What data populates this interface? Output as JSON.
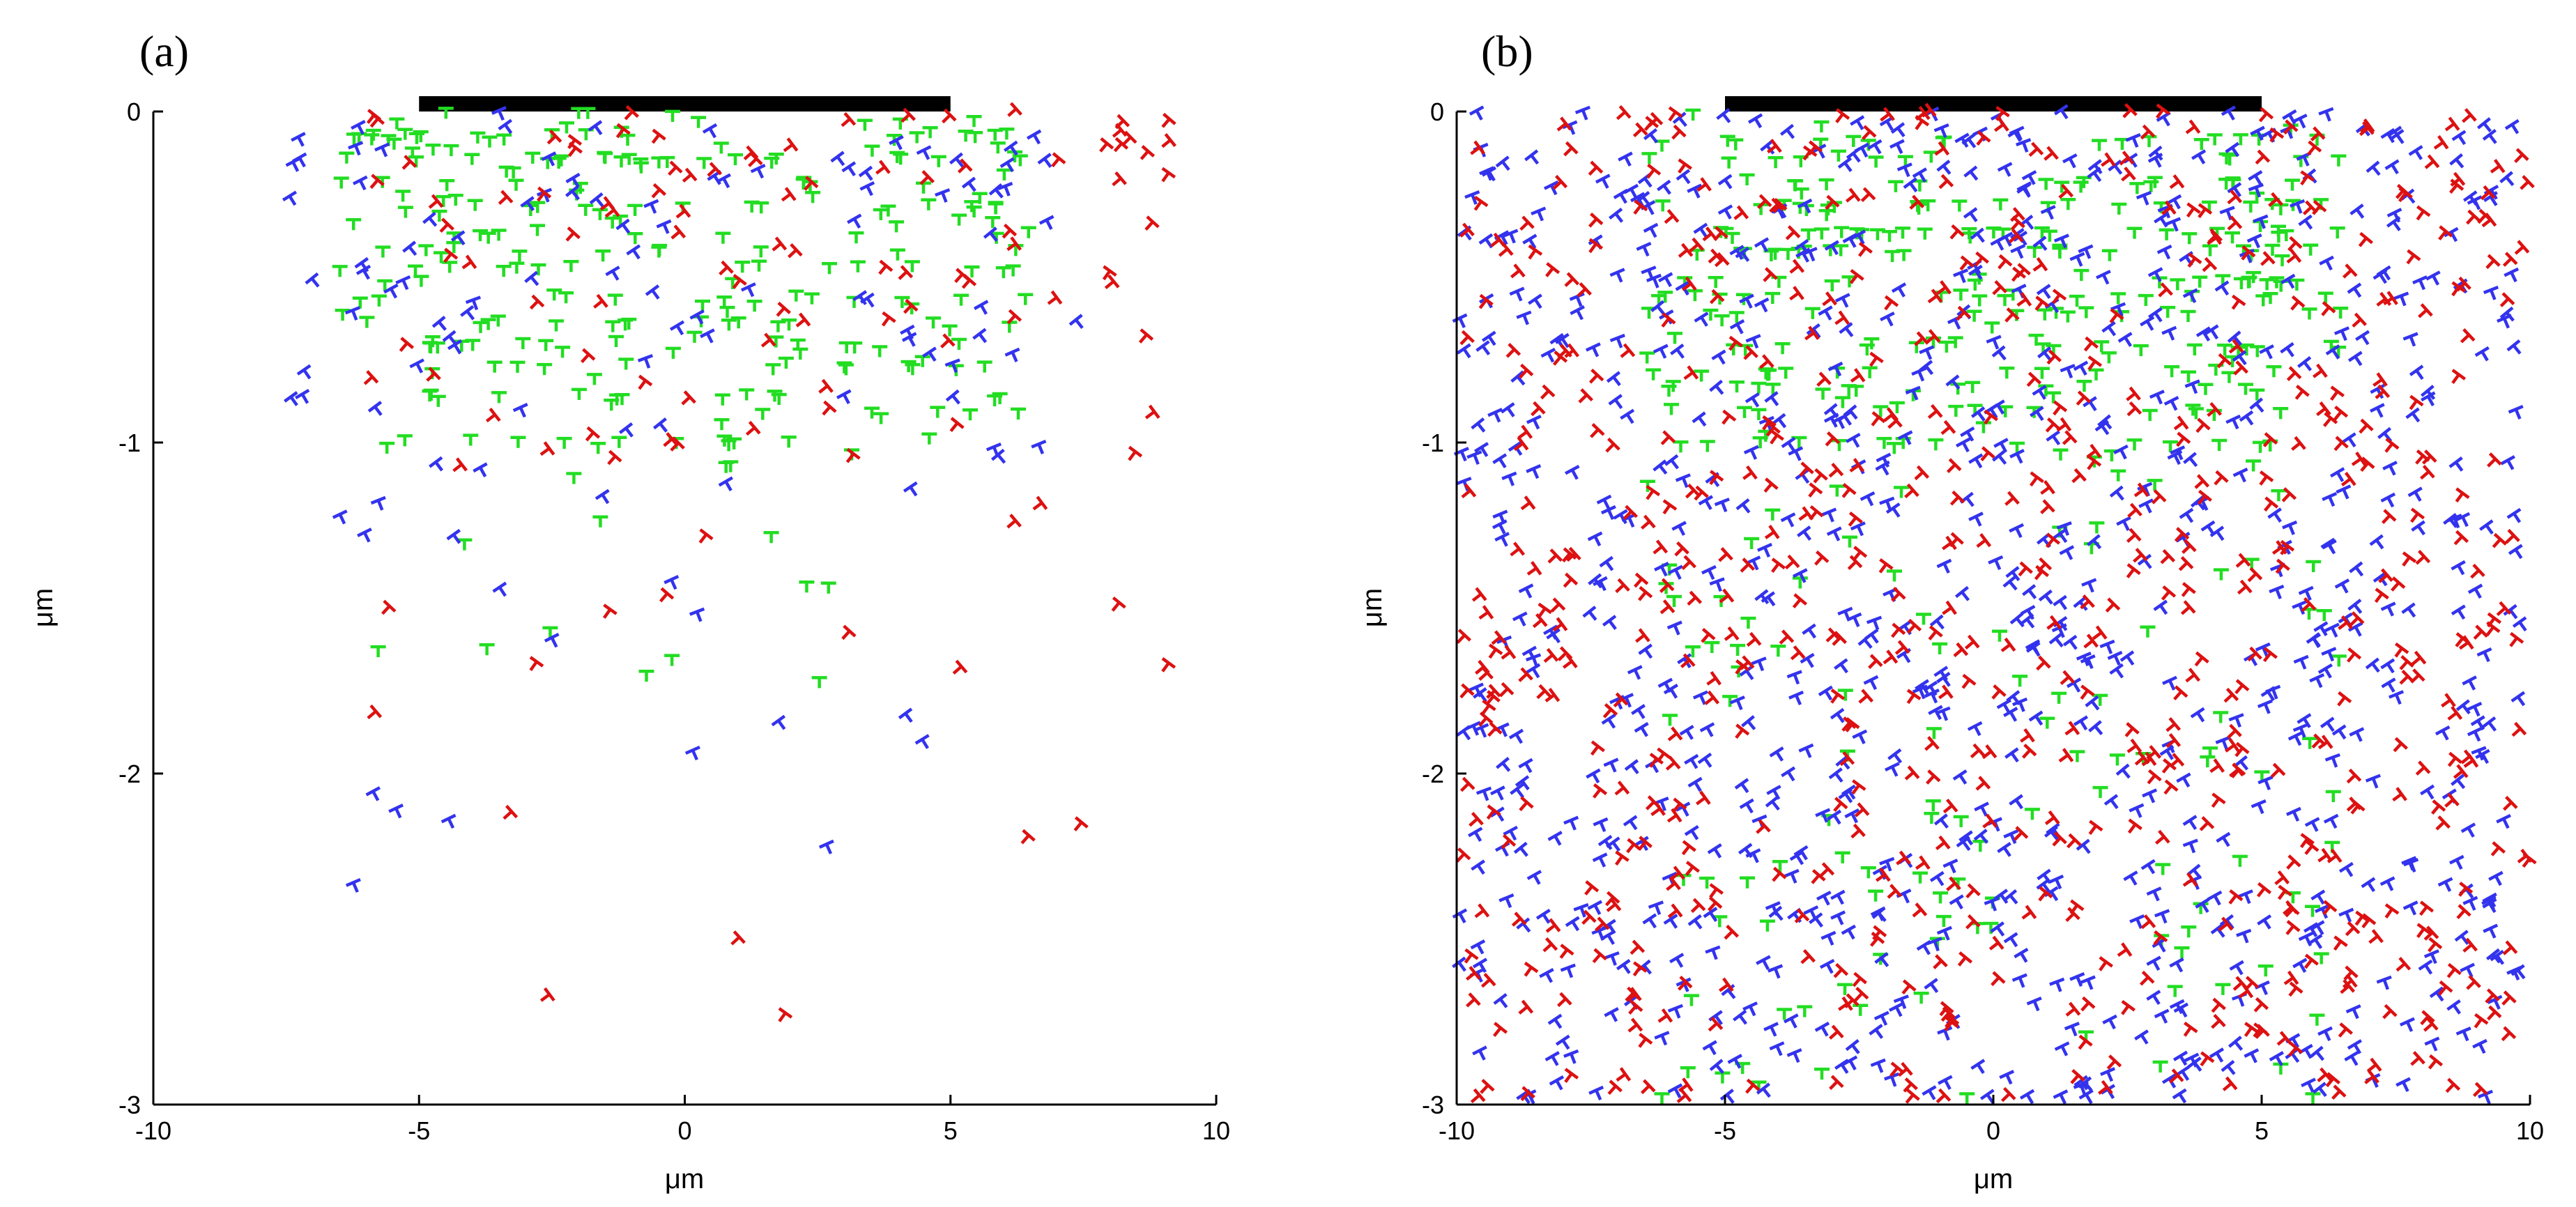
{
  "chart_data": [
    {
      "type": "scatter",
      "panel_label": "(a)",
      "xlabel": "μm",
      "ylabel": "μm",
      "xlim": [
        -10,
        10
      ],
      "ylim": [
        -3,
        0
      ],
      "xticks": [
        "-10",
        "-5",
        "0",
        "5",
        "10"
      ],
      "yticks": [
        "0",
        "-1",
        "-2",
        "-3"
      ],
      "surface_bar": [
        -5,
        5
      ],
      "marker": "dislocation symbol",
      "series": [
        {
          "name": "green",
          "color": "#22dd22",
          "seed": 11,
          "count": 260,
          "xrange": [
            -6.5,
            6.5
          ],
          "depth_scale": 0.55,
          "layered": true
        },
        {
          "name": "blue",
          "color": "#3333ee",
          "seed": 23,
          "count": 110,
          "xrange": [
            -7.5,
            7.5
          ],
          "depth_scale": 0.75,
          "layered": false
        },
        {
          "name": "red",
          "color": "#dd1111",
          "seed": 37,
          "count": 110,
          "xrange": [
            -6,
            9.2
          ],
          "depth_scale": 0.8,
          "layered": false
        }
      ]
    },
    {
      "type": "scatter",
      "panel_label": "(b)",
      "xlabel": "μm",
      "ylabel": "μm",
      "xlim": [
        -10,
        10
      ],
      "ylim": [
        -3,
        0
      ],
      "xticks": [
        "-10",
        "-5",
        "0",
        "5",
        "10"
      ],
      "yticks": [
        "0",
        "-1",
        "-2",
        "-3"
      ],
      "surface_bar": [
        -5,
        5
      ],
      "marker": "dislocation symbol",
      "series": [
        {
          "name": "green",
          "color": "#22dd22",
          "seed": 41,
          "count": 380,
          "xrange": [
            -6.5,
            6.5
          ],
          "depth_scale": 3.0,
          "layered": true
        },
        {
          "name": "blue",
          "color": "#3333ee",
          "seed": 53,
          "count": 850,
          "xrange": [
            -10,
            10
          ],
          "depth_scale": 3.0,
          "layered": false
        },
        {
          "name": "red",
          "color": "#dd1111",
          "seed": 67,
          "count": 700,
          "xrange": [
            -10,
            10
          ],
          "depth_scale": 3.0,
          "layered": false
        }
      ]
    }
  ]
}
